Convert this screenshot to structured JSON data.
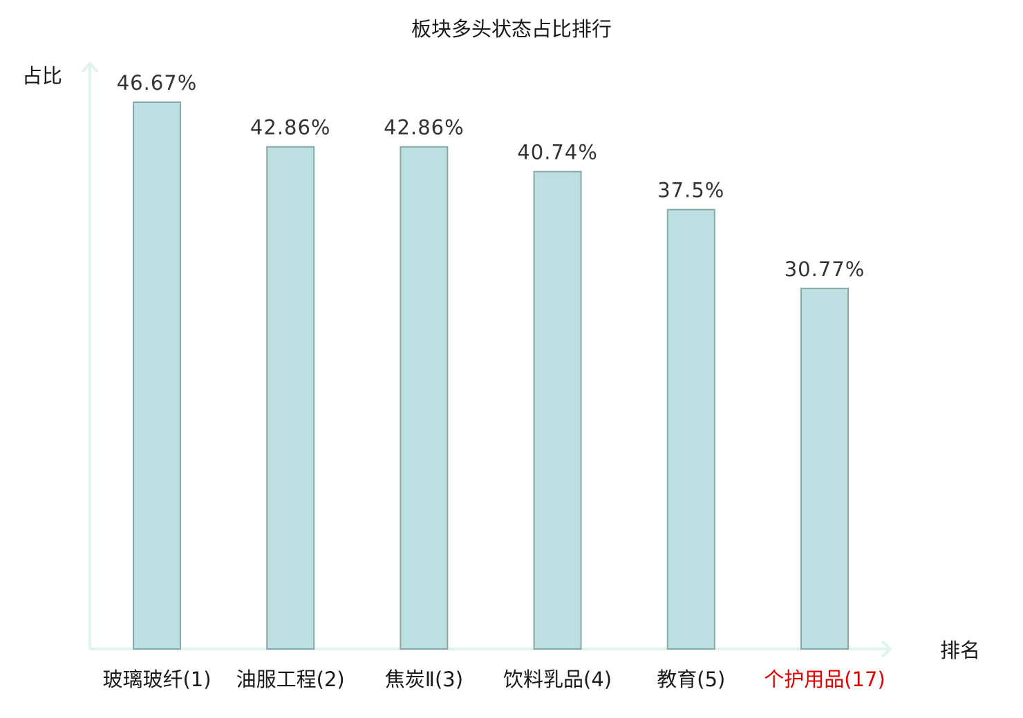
{
  "chart_data": {
    "type": "bar",
    "title": "板块多头状态占比排行",
    "ylabel": "占比",
    "xlabel": "排名",
    "categories": [
      "玻璃玻纤(1)",
      "油服工程(2)",
      "焦炭Ⅱ(3)",
      "饮料乳品(4)",
      "教育(5)",
      "个护用品(17)"
    ],
    "values": [
      46.67,
      42.86,
      42.86,
      40.74,
      37.5,
      30.77
    ],
    "value_labels": [
      "46.67%",
      "42.86%",
      "42.86%",
      "40.74%",
      "37.5%",
      "30.77%"
    ],
    "highlight_index": 5,
    "ylim": [
      0,
      46.67
    ],
    "grid": false,
    "legend": "none"
  },
  "colors": {
    "bar_fill": "#bce0e2",
    "bar_stroke": "#86a8a8",
    "axis": "#dff2ef",
    "text": "#1a1a1a",
    "value_text": "#333333",
    "highlight_text": "#e00000"
  }
}
